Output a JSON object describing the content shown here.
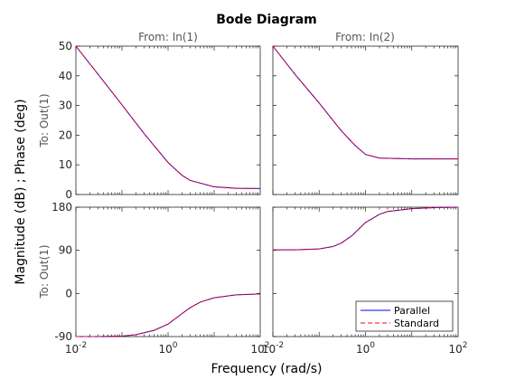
{
  "chart_data": {
    "type": "line",
    "title": "Bode Diagram",
    "xlabel": "Frequency  (rad/s)",
    "ylabel": "Magnitude (dB) ; Phase (deg)",
    "x_scale": "log",
    "xlim": [
      0.01,
      100
    ],
    "x_ticks": [
      0.01,
      1,
      100
    ],
    "col_titles": [
      "From: In(1)",
      "From: In(2)"
    ],
    "row_label": "To: Out(1)",
    "magnitude_ylim": [
      0,
      50
    ],
    "magnitude_ticks": [
      0,
      10,
      20,
      30,
      40,
      50
    ],
    "phase_ylim": [
      -90,
      180
    ],
    "phase_ticks": [
      -90,
      0,
      90,
      180
    ],
    "legend": {
      "position": "bottom-right",
      "entries": [
        "Parallel",
        "Standard"
      ]
    },
    "colors": {
      "Parallel": "#0000ff",
      "Standard": "#ff0000"
    },
    "series": [
      {
        "name": "Parallel",
        "input": "In(1)",
        "kind": "magnitude",
        "x": [
          0.01,
          0.03,
          0.1,
          0.3,
          1,
          2,
          3,
          10,
          30,
          100
        ],
        "values": [
          50,
          40.6,
          30.2,
          20.6,
          10.8,
          6.5,
          4.8,
          2.6,
          2.1,
          2.0
        ]
      },
      {
        "name": "Standard",
        "input": "In(1)",
        "kind": "magnitude",
        "x": [
          0.01,
          0.03,
          0.1,
          0.3,
          1,
          2,
          3,
          10,
          30,
          100
        ],
        "values": [
          50,
          40.6,
          30.2,
          20.6,
          10.8,
          6.5,
          4.8,
          2.6,
          2.1,
          2.0
        ]
      },
      {
        "name": "Parallel",
        "input": "In(2)",
        "kind": "magnitude",
        "x": [
          0.01,
          0.03,
          0.1,
          0.3,
          0.6,
          1,
          2,
          10,
          100
        ],
        "values": [
          50,
          40.5,
          30.8,
          21.5,
          16.5,
          13.5,
          12.3,
          12.0,
          12.0
        ]
      },
      {
        "name": "Standard",
        "input": "In(2)",
        "kind": "magnitude",
        "x": [
          0.01,
          0.03,
          0.1,
          0.3,
          0.6,
          1,
          2,
          10,
          100
        ],
        "values": [
          50,
          40.5,
          30.8,
          21.5,
          16.5,
          13.5,
          12.3,
          12.0,
          12.0
        ]
      },
      {
        "name": "Parallel",
        "input": "In(1)",
        "kind": "phase",
        "x": [
          0.01,
          0.03,
          0.1,
          0.2,
          0.5,
          1,
          2,
          3,
          5,
          10,
          30,
          100
        ],
        "values": [
          -90,
          -90,
          -89,
          -86,
          -77,
          -64,
          -42,
          -30,
          -18,
          -9,
          -3,
          -1
        ]
      },
      {
        "name": "Standard",
        "input": "In(1)",
        "kind": "phase",
        "x": [
          0.01,
          0.03,
          0.1,
          0.2,
          0.5,
          1,
          2,
          3,
          5,
          10,
          30,
          100
        ],
        "values": [
          -90,
          -90,
          -89,
          -86,
          -77,
          -64,
          -42,
          -30,
          -18,
          -9,
          -3,
          -1
        ]
      },
      {
        "name": "Parallel",
        "input": "In(2)",
        "kind": "phase",
        "x": [
          0.01,
          0.03,
          0.1,
          0.2,
          0.3,
          0.5,
          1,
          2,
          3,
          10,
          30,
          100
        ],
        "values": [
          91,
          91,
          93,
          98,
          105,
          120,
          148,
          165,
          171,
          177,
          179,
          180
        ]
      },
      {
        "name": "Standard",
        "input": "In(2)",
        "kind": "phase",
        "x": [
          0.01,
          0.03,
          0.1,
          0.2,
          0.3,
          0.5,
          1,
          2,
          3,
          10,
          30,
          100
        ],
        "values": [
          91,
          91,
          93,
          98,
          105,
          120,
          148,
          165,
          171,
          177,
          179,
          180
        ]
      }
    ]
  }
}
